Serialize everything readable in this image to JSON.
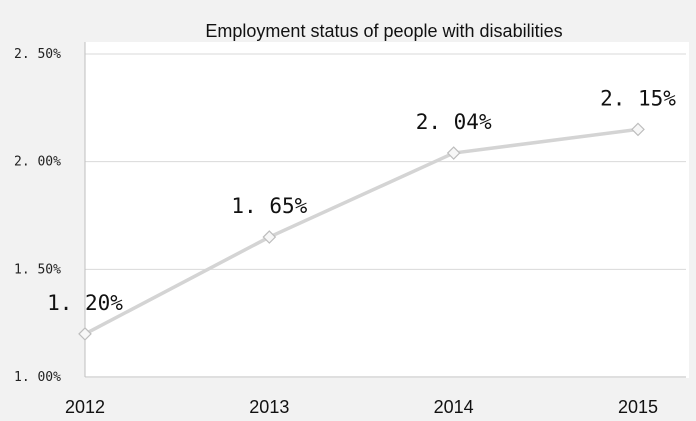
{
  "chart_data": {
    "type": "line",
    "title": "Employment status of people with disabilities",
    "xlabel": "",
    "ylabel": "",
    "categories": [
      "2012",
      "2013",
      "2014",
      "2015"
    ],
    "series": [
      {
        "values": [
          1.2,
          1.65,
          2.04,
          2.15
        ],
        "data_labels": [
          "1. 20%",
          "1. 65%",
          "2. 04%",
          "2. 15%"
        ]
      }
    ],
    "ylim": [
      1.0,
      2.5
    ],
    "yticks": [
      1.0,
      1.5,
      2.0,
      2.5
    ],
    "ytick_labels": [
      "1. 00%",
      "1. 50%",
      "2. 00%",
      "2. 50%"
    ],
    "grid": true,
    "legend": "none",
    "colors": {
      "background": "#f2f2f2",
      "plot_area": "#ffffff",
      "line": "#d4d4d4",
      "marker_fill": "#f7f7f7",
      "marker_stroke": "#bdbdbd",
      "gridline": "#d9d9d9",
      "axis": "#bfbfbf"
    }
  }
}
